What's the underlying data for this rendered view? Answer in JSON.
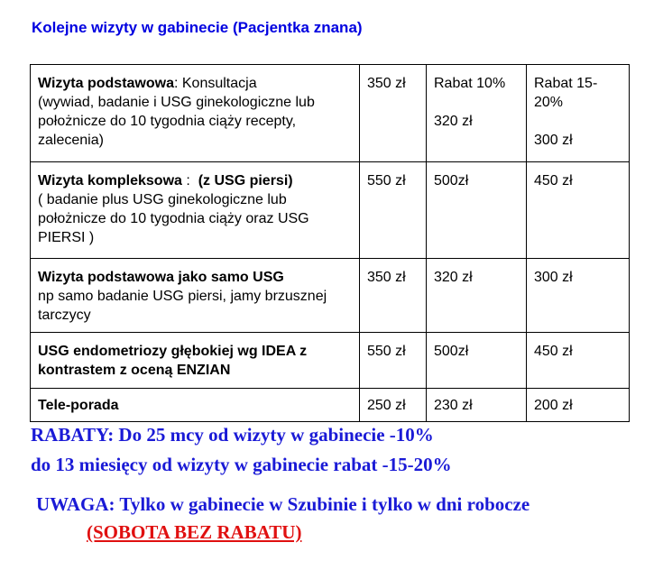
{
  "title": "Kolejne wizyty w gabinecie (Pacjentka znana)",
  "rows": [
    {
      "name_bold": "Wizyta podstawowa",
      "name_rest": ": Konsultacja",
      "desc": "(wywiad, badanie i USG ginekologiczne lub  położnicze do 10 tygodnia ciąży recepty, zalecenia)",
      "price": "350 zł",
      "rabat1_label": "Rabat 10%",
      "rabat1": "320 zł",
      "rabat2_label": "Rabat 15-20%",
      "rabat2": "300 zł"
    },
    {
      "name_bold": "Wizyta kompleksowa",
      "name_rest": " :  ",
      "name_bold2": "(z USG piersi)",
      "desc": "( badanie plus  USG ginekologiczne lub położnicze do 10 tygodnia ciąży  oraz USG PIERSI )",
      "price": "550 zł",
      "rabat1": "500zł",
      "rabat2": "450 zł"
    },
    {
      "name_bold": "Wizyta podstawowa jako samo USG",
      "desc": "np samo badanie USG piersi, jamy brzusznej tarczycy",
      "price": "350 zł",
      "rabat1": "320 zł",
      "rabat2": "300 zł"
    },
    {
      "name_bold": "USG endometriozy  głębokiej wg IDEA z kontrastem z oceną ENZIAN",
      "price": "550 zł",
      "rabat1": "500zł",
      "rabat2": "450 zł"
    },
    {
      "name_bold": "Tele-porada",
      "price": "250 zł",
      "rabat1": "230 zł",
      "rabat2": "200 zł"
    }
  ],
  "notes": {
    "line1": "RABATY:  Do 25 mcy od wizyty w gabinecie -10%",
    "line2": "do 13 miesięcy  od wizyty w gabinecie rabat -15-20%",
    "line3": "UWAGA: Tylko w gabinecie w  Szubinie i tylko w dni robocze",
    "line4": "(SOBOTA BEZ RABATU)"
  },
  "colors": {
    "title": "#0000e0",
    "notes": "#1a1ad6",
    "warning": "#e01010"
  }
}
